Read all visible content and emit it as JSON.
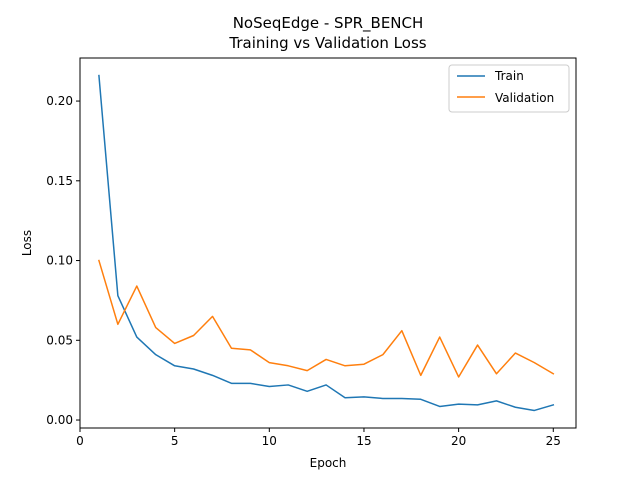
{
  "chart_data": {
    "type": "line",
    "title": "NoSeqEdge - SPR_BENCH",
    "subtitle": "Training vs Validation Loss",
    "xlabel": "Epoch",
    "ylabel": "Loss",
    "xlim": [
      0,
      26.2
    ],
    "ylim": [
      -0.005,
      0.227
    ],
    "xticks": [
      0,
      5,
      10,
      15,
      20,
      25
    ],
    "yticks": [
      0.0,
      0.05,
      0.1,
      0.15,
      0.2
    ],
    "ytick_labels": [
      "0.00",
      "0.05",
      "0.10",
      "0.15",
      "0.20"
    ],
    "grid": false,
    "legend": "top-right",
    "x": [
      1,
      2,
      3,
      4,
      5,
      6,
      7,
      8,
      9,
      10,
      11,
      12,
      13,
      14,
      15,
      16,
      17,
      18,
      19,
      20,
      21,
      22,
      23,
      24,
      25
    ],
    "series": [
      {
        "name": "Train",
        "color": "#1f77b4",
        "values": [
          0.216,
          0.078,
          0.052,
          0.041,
          0.034,
          0.032,
          0.028,
          0.023,
          0.023,
          0.021,
          0.022,
          0.018,
          0.022,
          0.014,
          0.0145,
          0.0135,
          0.0135,
          0.013,
          0.0085,
          0.01,
          0.0095,
          0.012,
          0.008,
          0.006,
          0.0095
        ]
      },
      {
        "name": "Validation",
        "color": "#ff7f0e",
        "values": [
          0.1,
          0.06,
          0.084,
          0.058,
          0.048,
          0.053,
          0.065,
          0.045,
          0.044,
          0.036,
          0.034,
          0.031,
          0.038,
          0.034,
          0.035,
          0.041,
          0.056,
          0.028,
          0.052,
          0.027,
          0.047,
          0.029,
          0.042,
          0.036,
          0.029
        ]
      }
    ]
  }
}
